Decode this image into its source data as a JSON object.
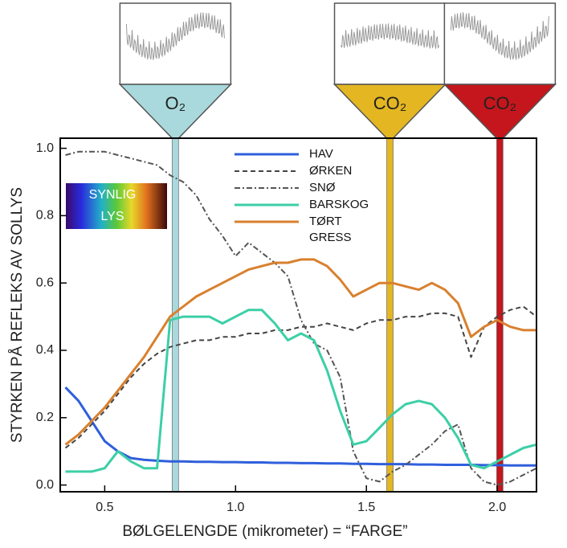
{
  "chart_data": {
    "type": "line",
    "xlabel": "BØLGELENGDE (mikrometer) = “FARGE”",
    "ylabel": "STYRKEN PÅ REFLEKS AV SOLLYS",
    "xlim": [
      0.33,
      2.15
    ],
    "ylim": [
      -0.02,
      1.03
    ],
    "xticks": [
      0.5,
      {
        "value": 1,
        "label": "1.0"
      },
      1.5,
      {
        "value": 2,
        "label": "2.0"
      }
    ],
    "yticks": [
      {
        "value": 0,
        "label": "0.0"
      },
      0.2,
      0.4,
      0.6,
      0.8,
      {
        "value": 1,
        "label": "1.0"
      }
    ],
    "x": [
      0.35,
      0.4,
      0.45,
      0.5,
      0.55,
      0.6,
      0.65,
      0.7,
      0.75,
      0.8,
      0.85,
      0.9,
      0.95,
      1.0,
      1.05,
      1.1,
      1.15,
      1.2,
      1.25,
      1.3,
      1.35,
      1.4,
      1.45,
      1.5,
      1.55,
      1.6,
      1.65,
      1.7,
      1.75,
      1.8,
      1.85,
      1.9,
      1.95,
      2.0,
      2.05,
      2.1,
      2.15
    ],
    "series": [
      {
        "name": "HAV",
        "color": "#2f5fdc",
        "dash": "solid",
        "values": [
          0.29,
          0.25,
          0.19,
          0.13,
          0.1,
          0.08,
          0.075,
          0.072,
          0.07,
          0.07,
          0.069,
          0.069,
          0.068,
          0.068,
          0.067,
          0.067,
          0.066,
          0.066,
          0.065,
          0.065,
          0.064,
          0.064,
          0.063,
          0.063,
          0.062,
          0.062,
          0.062,
          0.061,
          0.061,
          0.06,
          0.06,
          0.06,
          0.059,
          0.059,
          0.058,
          0.058,
          0.058
        ]
      },
      {
        "name": "ØRKEN",
        "color": "#444444",
        "dash": "dashed",
        "values": [
          0.11,
          0.14,
          0.18,
          0.22,
          0.27,
          0.32,
          0.36,
          0.39,
          0.41,
          0.42,
          0.43,
          0.43,
          0.44,
          0.44,
          0.45,
          0.45,
          0.46,
          0.46,
          0.47,
          0.47,
          0.48,
          0.47,
          0.46,
          0.48,
          0.49,
          0.49,
          0.5,
          0.5,
          0.51,
          0.51,
          0.5,
          0.38,
          0.47,
          0.5,
          0.52,
          0.53,
          0.5
        ]
      },
      {
        "name": "SNØ",
        "color": "#555555",
        "dash": "dashdot",
        "values": [
          0.98,
          0.99,
          0.99,
          0.99,
          0.98,
          0.97,
          0.96,
          0.95,
          0.92,
          0.9,
          0.86,
          0.79,
          0.74,
          0.68,
          0.72,
          0.69,
          0.66,
          0.62,
          0.49,
          0.42,
          0.4,
          0.32,
          0.1,
          0.02,
          0.01,
          0.04,
          0.06,
          0.09,
          0.12,
          0.16,
          0.18,
          0.05,
          0.01,
          0.0,
          0.01,
          0.03,
          0.05
        ]
      },
      {
        "name": "BARSKOG",
        "color": "#3ccfa6",
        "dash": "solid",
        "values": [
          0.04,
          0.04,
          0.04,
          0.05,
          0.1,
          0.07,
          0.05,
          0.05,
          0.49,
          0.5,
          0.5,
          0.5,
          0.48,
          0.5,
          0.52,
          0.52,
          0.48,
          0.43,
          0.45,
          0.43,
          0.34,
          0.22,
          0.12,
          0.13,
          0.17,
          0.21,
          0.24,
          0.25,
          0.24,
          0.2,
          0.14,
          0.06,
          0.05,
          0.07,
          0.09,
          0.11,
          0.12
        ]
      },
      {
        "name": "TØRT GRESS",
        "color": "#d9802e",
        "dash": "solid",
        "values": [
          0.12,
          0.15,
          0.19,
          0.23,
          0.28,
          0.33,
          0.38,
          0.44,
          0.5,
          0.53,
          0.56,
          0.58,
          0.6,
          0.62,
          0.64,
          0.65,
          0.66,
          0.66,
          0.67,
          0.67,
          0.65,
          0.61,
          0.56,
          0.58,
          0.6,
          0.6,
          0.59,
          0.58,
          0.6,
          0.58,
          0.54,
          0.44,
          0.47,
          0.49,
          0.47,
          0.46,
          0.46
        ]
      }
    ],
    "bands": [
      {
        "label": "O₂",
        "x": 0.77,
        "color": "#a9d9dd"
      },
      {
        "label": "CO₂",
        "x": 1.59,
        "color": "#e4b622"
      },
      {
        "label": "CO₂",
        "x": 2.01,
        "color": "#c4161c"
      }
    ],
    "visible_light": [
      "SYNLIG",
      "LYS"
    ]
  }
}
